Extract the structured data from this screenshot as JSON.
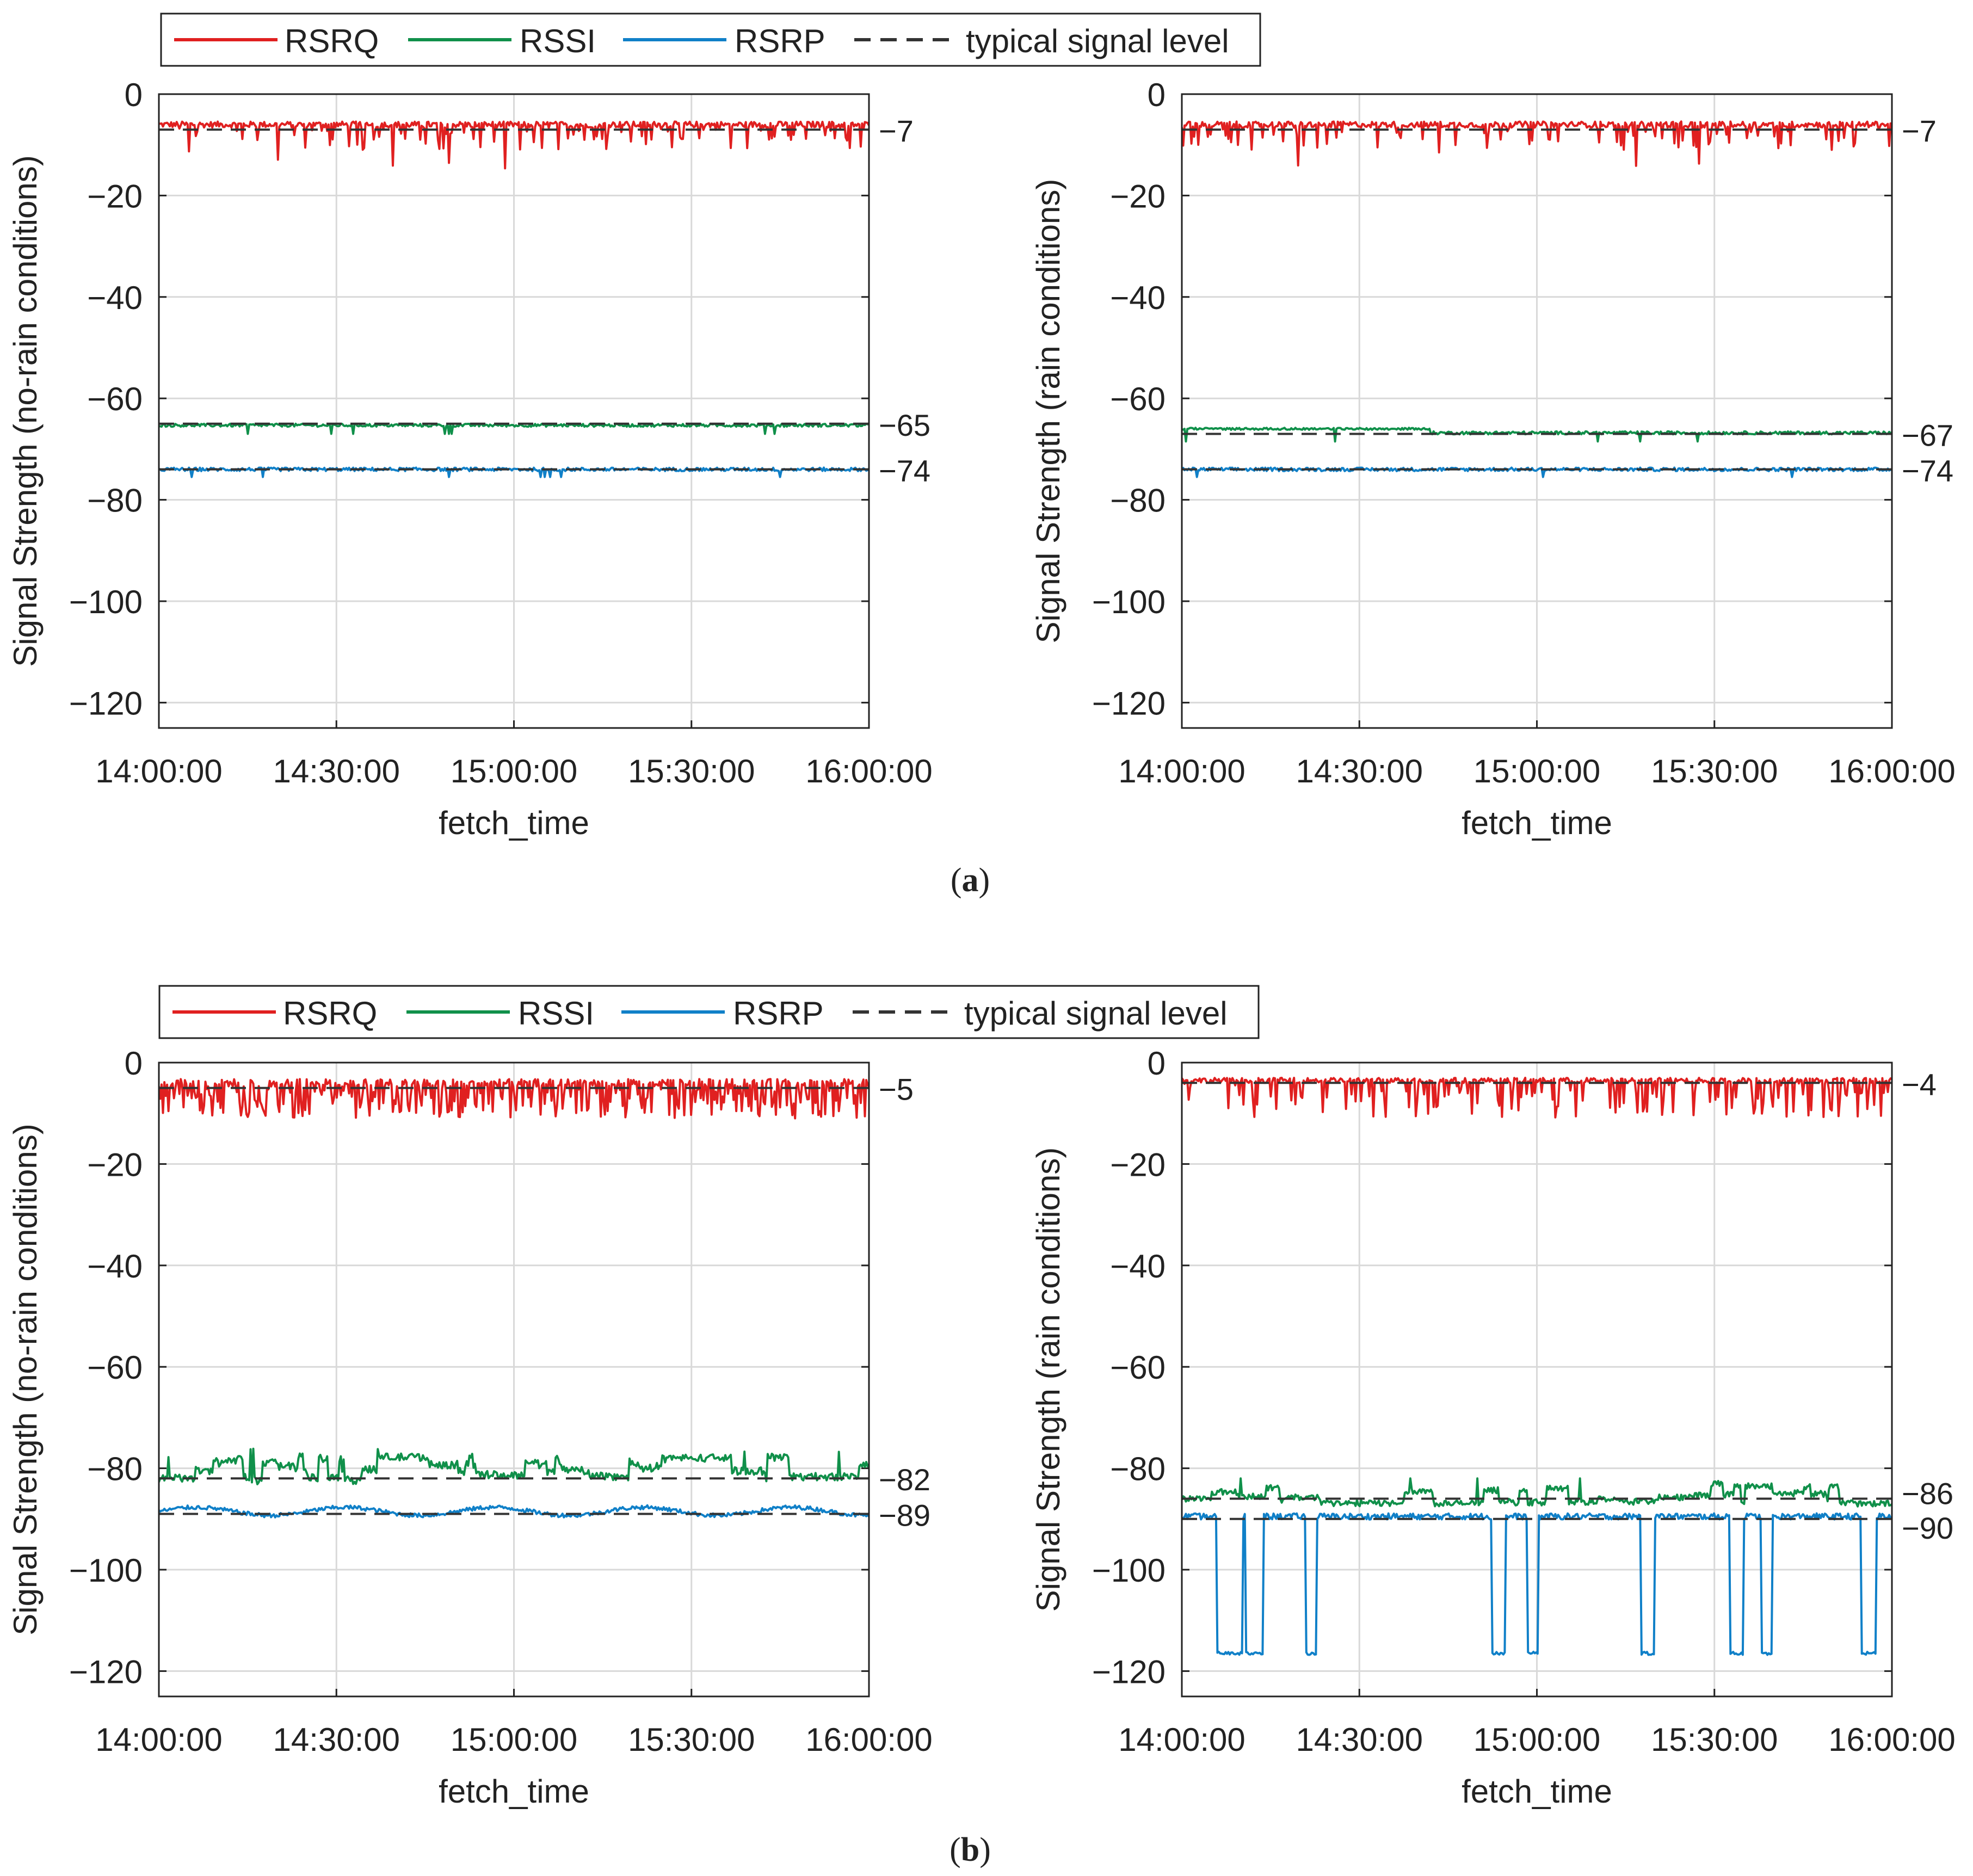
{
  "colors": {
    "RSRQ": "#e02020",
    "RSSI": "#10904a",
    "RSRP": "#1080c8",
    "typical": "#333333",
    "grid": "#d9d9d9"
  },
  "legend": {
    "labels": [
      "RSRQ",
      "RSSI",
      "RSRP",
      "typical signal level"
    ]
  },
  "xlabel": "fetch_time",
  "xticks": [
    "14:00:00",
    "14:30:00",
    "15:00:00",
    "15:30:00",
    "16:00:00"
  ],
  "yticks": [
    "0",
    "−20",
    "−40",
    "−60",
    "−80",
    "−100",
    "−120"
  ],
  "chart_data": [
    {
      "panel": "a-left",
      "type": "line",
      "ylabel": "Signal Strength (no-rain conditions)",
      "x": [
        "14:00:00",
        "14:30:00",
        "15:00:00",
        "15:30:00",
        "16:00:00"
      ],
      "ylim": [
        -125,
        0
      ],
      "grid": true,
      "series": [
        {
          "name": "RSRQ",
          "mean": -7,
          "dips": [
            -12,
            -14
          ]
        },
        {
          "name": "RSSI",
          "mean": -65,
          "dips": [
            -66,
            -67
          ]
        },
        {
          "name": "RSRP",
          "mean": -74,
          "dips": [
            -75
          ]
        }
      ],
      "typical_levels": [
        "−7",
        "−65",
        "−74"
      ]
    },
    {
      "panel": "a-right",
      "type": "line",
      "ylabel": "Signal Strength (rain conditions)",
      "x": [
        "14:00:00",
        "14:30:00",
        "15:00:00",
        "15:30:00",
        "16:00:00"
      ],
      "ylim": [
        -125,
        0
      ],
      "grid": true,
      "series": [
        {
          "name": "RSRQ",
          "mean": -7,
          "dips": [
            -12,
            -14
          ]
        },
        {
          "name": "RSSI",
          "mean": -67,
          "dips": [
            -68
          ]
        },
        {
          "name": "RSRP",
          "mean": -74,
          "dips": [
            -75
          ]
        }
      ],
      "typical_levels": [
        "−7",
        "−67",
        "−74"
      ]
    },
    {
      "panel": "b-left",
      "type": "line",
      "ylabel": "Signal Strength (no-rain conditions)",
      "x": [
        "14:00:00",
        "14:30:00",
        "15:00:00",
        "15:30:00",
        "16:00:00"
      ],
      "ylim": [
        -125,
        0
      ],
      "grid": true,
      "series": [
        {
          "name": "RSRQ",
          "mean": -5,
          "range": [
            -11,
            -3
          ]
        },
        {
          "name": "RSSI",
          "mean": -82,
          "range": [
            -85,
            -76
          ]
        },
        {
          "name": "RSRP",
          "mean": -89,
          "range": [
            -91,
            -87
          ]
        }
      ],
      "typical_levels": [
        "−5",
        "−82",
        "−89"
      ]
    },
    {
      "panel": "b-right",
      "type": "line",
      "ylabel": "Signal Strength (rain conditions)",
      "x": [
        "14:00:00",
        "14:30:00",
        "15:00:00",
        "15:30:00",
        "16:00:00"
      ],
      "ylim": [
        -125,
        0
      ],
      "grid": true,
      "series": [
        {
          "name": "RSRQ",
          "mean": -4,
          "range": [
            -13,
            -3
          ]
        },
        {
          "name": "RSSI",
          "mean": -86,
          "range": [
            -92,
            -81
          ]
        },
        {
          "name": "RSRP",
          "mean": -90,
          "drop_level": -117
        }
      ],
      "typical_levels": [
        "−4",
        "−86",
        "−90"
      ]
    }
  ],
  "captions": {
    "a": "a",
    "b": "b"
  }
}
